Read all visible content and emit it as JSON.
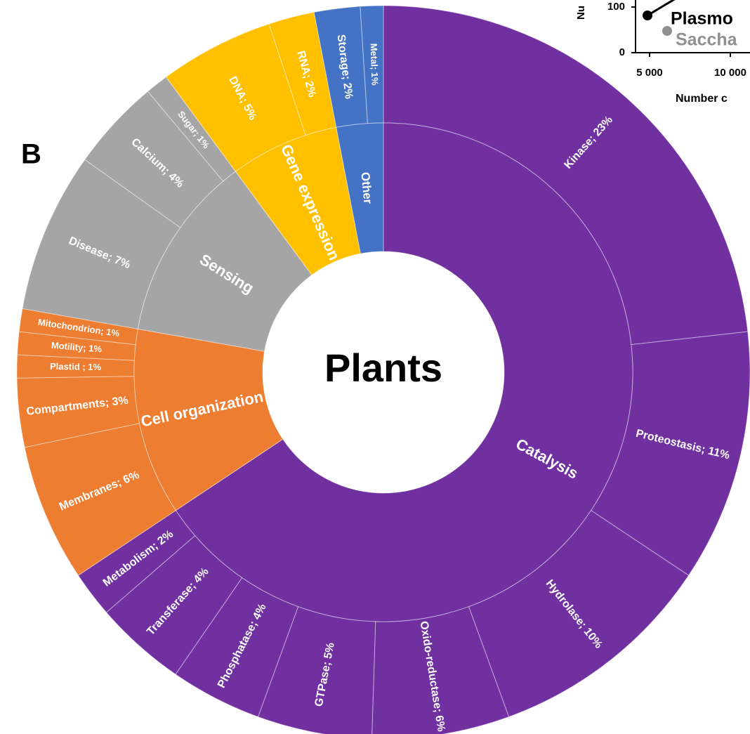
{
  "panel_label": "B",
  "side_panel": {
    "y_axis_label": "Nu",
    "yticks": [
      0,
      100
    ],
    "xticks": [
      {
        "value": 5000,
        "label": "5 000"
      },
      {
        "value": 10000,
        "label": "10 000"
      }
    ],
    "x_axis_label": "Number c",
    "point_labels": [
      "Plasmo",
      "Saccha"
    ]
  },
  "chart_data": {
    "type": "sunburst",
    "center_label": "Plants",
    "groups": [
      {
        "name": "Catalysis",
        "color": "#7030a0",
        "labels": [
          "Kinase; 23%",
          "Proteostasis; 11%",
          "Hydrolase; 10%",
          "Oxido-reductase; 6%",
          "GTPase; 5%",
          "Phosphatase; 4%",
          "Transferase; 4%",
          "Metabolism; 2%"
        ],
        "values": [
          23,
          11,
          10,
          6,
          5,
          4,
          4,
          2
        ]
      },
      {
        "name": "Cell organization",
        "color": "#ed7d31",
        "labels": [
          "Membranes; 6%",
          "Compartments; 3%",
          "Plastid ; 1%",
          "Motility; 1%",
          "Mitochondrion; 1%"
        ],
        "values": [
          6,
          3,
          1,
          1,
          1
        ]
      },
      {
        "name": "Sensing",
        "color": "#a5a5a5",
        "labels": [
          "Disease; 7%",
          "Calcium; 4%",
          "Sugar; 1%"
        ],
        "values": [
          7,
          4,
          1
        ]
      },
      {
        "name": "Gene expression",
        "color": "#ffc000",
        "labels": [
          "DNA; 5%",
          "RNA; 2%"
        ],
        "values": [
          5,
          2
        ]
      },
      {
        "name": "Other",
        "color": "#4472c4",
        "labels": [
          "Storage; 2%",
          "Metal; 1%"
        ],
        "values": [
          2,
          1
        ]
      }
    ]
  }
}
